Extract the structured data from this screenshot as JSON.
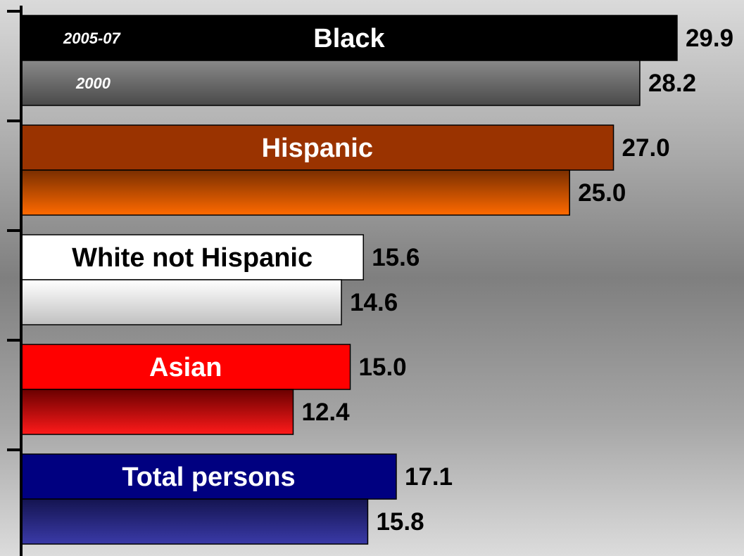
{
  "chart_data": {
    "type": "bar",
    "orientation": "horizontal",
    "categories": [
      "Black",
      "Hispanic",
      "White not Hispanic",
      "Asian",
      "Total persons"
    ],
    "series": [
      {
        "name": "2005-07",
        "values": [
          29.9,
          27.0,
          15.6,
          15.0,
          17.1
        ]
      },
      {
        "name": "2000",
        "values": [
          28.2,
          25.0,
          14.6,
          12.4,
          15.8
        ]
      }
    ],
    "value_labels": {
      "2005-07": [
        "29.9",
        "27.0",
        "15.6",
        "15.0",
        "17.1"
      ],
      "2000": [
        "28.2",
        "25.0",
        "14.6",
        "12.4",
        "15.8"
      ]
    },
    "xlim": [
      0,
      30.8
    ],
    "grid": false,
    "legend_placement": "inside top bars",
    "colors": {
      "Black": {
        "dark": "#000000",
        "light": "#8a8a8a",
        "light_end": "#4a4a4a",
        "text": "#ffffff"
      },
      "Hispanic": {
        "dark": "#9a3300",
        "light": "#7a2e00",
        "light_end": "#ff6a00",
        "text": "#ffffff"
      },
      "White not Hispanic": {
        "dark": "#ffffff",
        "light": "#ffffff",
        "light_end": "#c0c0c0",
        "text": "#000000"
      },
      "Asian": {
        "dark": "#ff0000",
        "light": "#6a0000",
        "light_end": "#ff1a1a",
        "text": "#ffffff"
      },
      "Total persons": {
        "dark": "#000080",
        "light": "#141450",
        "light_end": "#3a3aa8",
        "text": "#ffffff"
      }
    }
  }
}
